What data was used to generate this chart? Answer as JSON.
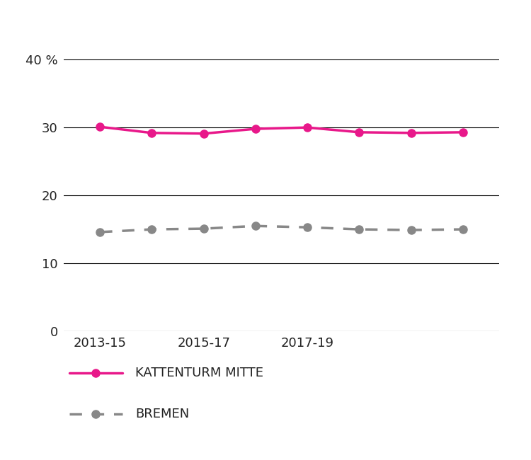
{
  "x_values": [
    2013,
    2014,
    2015,
    2016,
    2017,
    2018,
    2019,
    2020
  ],
  "kattenturm_values": [
    30.1,
    29.2,
    29.1,
    29.8,
    30.0,
    29.3,
    29.2,
    29.3
  ],
  "bremen_values": [
    14.6,
    15.0,
    15.1,
    15.5,
    15.3,
    15.0,
    14.9,
    15.0
  ],
  "kattenturm_color": "#E8188A",
  "bremen_color": "#888888",
  "ylim": [
    0,
    42
  ],
  "yticks": [
    0,
    10,
    20,
    30,
    40
  ],
  "ytick_labels": [
    "0",
    "10",
    "20",
    "30",
    "40 %"
  ],
  "xtick_positions": [
    2013,
    2015,
    2017,
    2019
  ],
  "xtick_labels": [
    "2013-15",
    "2015-17",
    "2017-19",
    ""
  ],
  "legend_kattenturm": "KATTENTURM MITTE",
  "legend_bremen": "BREMEN",
  "background_color": "#ffffff",
  "line_width": 2.5,
  "marker_size": 8
}
